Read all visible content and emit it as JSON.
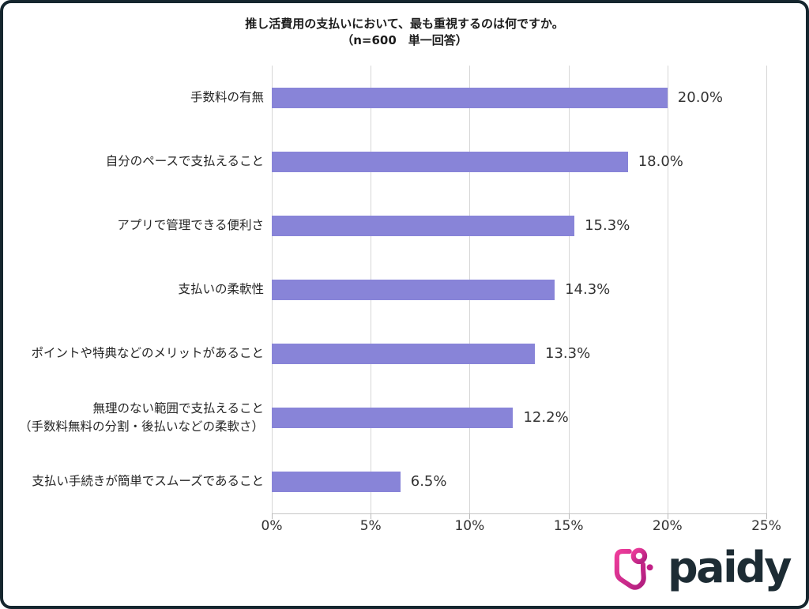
{
  "frame": {
    "border_color": "#15262e",
    "background": "#ffffff"
  },
  "title": {
    "line1": "推し活費用の支払いにおいて、最も重視するのは何ですか。",
    "line2": "（n=600　単一回答）"
  },
  "chart_data": {
    "type": "bar",
    "orientation": "horizontal",
    "title": "推し活費用の支払いにおいて、最も重視するのは何ですか。",
    "subtitle": "（n=600　単一回答）",
    "categories": [
      "手数料の有無",
      "自分のペースで支払えること",
      "アプリで管理できる便利さ",
      "支払いの柔軟性",
      "ポイントや特典などのメリットがあること",
      "無理のない範囲で支払えること\n（手数料無料の分割・後払いなどの柔軟さ）",
      "支払い手続きが簡単でスムーズであること"
    ],
    "values": [
      20.0,
      18.0,
      15.3,
      14.3,
      13.3,
      12.2,
      6.5
    ],
    "value_labels": [
      "20.0%",
      "18.0%",
      "15.3%",
      "14.3%",
      "13.3%",
      "12.2%",
      "6.5%"
    ],
    "x_ticks": [
      "0%",
      "5%",
      "10%",
      "15%",
      "20%",
      "25%"
    ],
    "xlim": [
      0,
      25
    ],
    "grid": true,
    "legend": false,
    "bar_color": "#8884d8",
    "gridline_color": "#d7d7d7"
  },
  "logo": {
    "text": "paidy",
    "icon": "paidy-heart-icon",
    "pink_start": "#ee3d9b",
    "pink_end": "#b01e7f",
    "text_color": "#1d2c34"
  }
}
